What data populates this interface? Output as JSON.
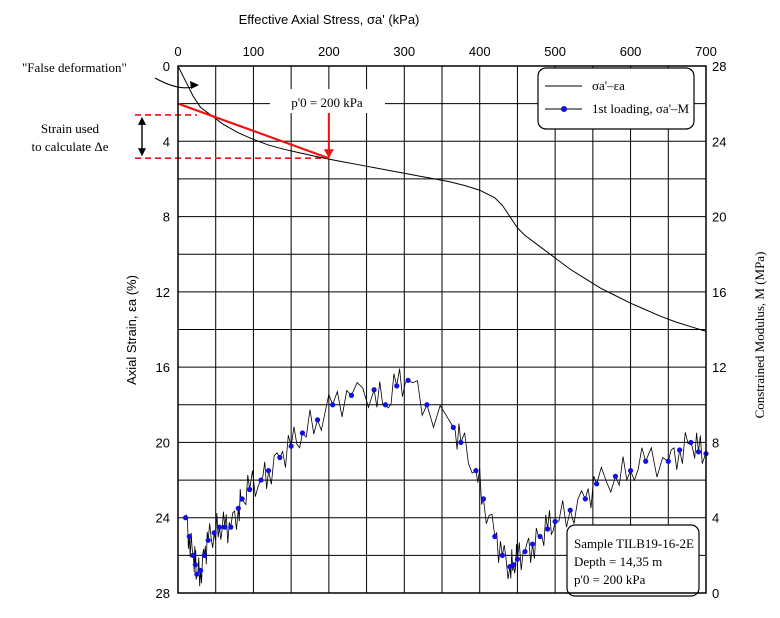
{
  "chart_data": {
    "type": "line",
    "top_axis": {
      "label": "Effective Axial Stress, σa'  (kPa)",
      "range": [
        0,
        700
      ],
      "ticks": [
        0,
        100,
        200,
        300,
        400,
        500,
        600,
        700
      ],
      "minor_step": 50
    },
    "left_axis": {
      "label": "Axial Strain, εa  (%)",
      "range": [
        0,
        28
      ],
      "inverted": true,
      "ticks": [
        0,
        4,
        8,
        12,
        16,
        20,
        24,
        28
      ],
      "minor_step": 2
    },
    "right_axis": {
      "label": "Constrained Modulus, M  (MPa)",
      "range": [
        0,
        28
      ],
      "ticks": [
        0,
        4,
        8,
        12,
        16,
        20,
        24,
        28
      ]
    },
    "legend": {
      "position": "top-right",
      "entries": [
        "σa'–εa",
        "1st loading, σa'–M"
      ]
    },
    "strain_curve": {
      "name": "σa'–εa",
      "axis": "left",
      "x": [
        0,
        10,
        20,
        30,
        40,
        50,
        60,
        80,
        100,
        120,
        140,
        160,
        180,
        200,
        220,
        240,
        260,
        280,
        300,
        320,
        340,
        360,
        380,
        400,
        410,
        420,
        430,
        440,
        450,
        460,
        480,
        500,
        520,
        540,
        560,
        580,
        600,
        620,
        640,
        660,
        680,
        700
      ],
      "y": [
        0.0,
        0.8,
        1.6,
        2.2,
        2.5,
        2.8,
        3.1,
        3.55,
        3.9,
        4.2,
        4.42,
        4.6,
        4.78,
        4.95,
        5.1,
        5.25,
        5.4,
        5.55,
        5.7,
        5.85,
        6.0,
        6.15,
        6.35,
        6.6,
        6.8,
        7.0,
        7.4,
        8.0,
        8.6,
        9.0,
        9.6,
        10.2,
        10.8,
        11.3,
        11.8,
        12.2,
        12.6,
        12.95,
        13.3,
        13.6,
        13.85,
        14.1
      ]
    },
    "modulus_series": {
      "name": "1st loading, σa'–M",
      "axis": "right",
      "x": [
        10,
        15,
        20,
        23,
        25,
        30,
        35,
        40,
        48,
        55,
        62,
        70,
        80,
        85,
        95,
        110,
        120,
        135,
        150,
        165,
        185,
        205,
        230,
        260,
        275,
        290,
        305,
        330,
        365,
        375,
        395,
        405,
        420,
        430,
        440,
        445,
        450,
        460,
        470,
        480,
        490,
        500,
        520,
        540,
        555,
        580,
        600,
        620,
        650,
        665,
        680,
        690,
        700
      ],
      "y": [
        4.0,
        3.0,
        2.0,
        1.5,
        1.0,
        1.2,
        2.0,
        2.8,
        3.2,
        3.5,
        3.5,
        3.5,
        4.5,
        5.0,
        5.5,
        6.0,
        6.5,
        7.2,
        7.8,
        8.5,
        9.2,
        10.0,
        10.5,
        10.8,
        10.0,
        11.0,
        11.3,
        10.0,
        8.8,
        8.0,
        6.5,
        5.0,
        3.0,
        2.0,
        1.4,
        1.5,
        1.8,
        2.2,
        2.6,
        3.0,
        3.4,
        3.8,
        4.4,
        5.0,
        5.8,
        6.2,
        6.5,
        7.0,
        7.0,
        7.6,
        8.0,
        7.5,
        7.4
      ]
    },
    "annotations": {
      "false_deformation": "\"False deformation\"",
      "p0_label": "p'0 = 200 kPa",
      "strain_used_line1": "Strain used",
      "strain_used_line2": "to calculate Δe",
      "sample_line1": "Sample TILB19-16-2E",
      "sample_line2": "Depth = 14,35 m",
      "sample_line3": "p'0 = 200 kPa"
    },
    "tangent_line": {
      "from": {
        "x": 0,
        "y": 2.0
      },
      "to": {
        "x": 200,
        "y": 4.9
      }
    },
    "strain_band": [
      2.6,
      4.9
    ]
  },
  "colors": {
    "axes": "#000000",
    "curve": "#000000",
    "markers": "#1010e0",
    "annotation": "#ee1111"
  }
}
